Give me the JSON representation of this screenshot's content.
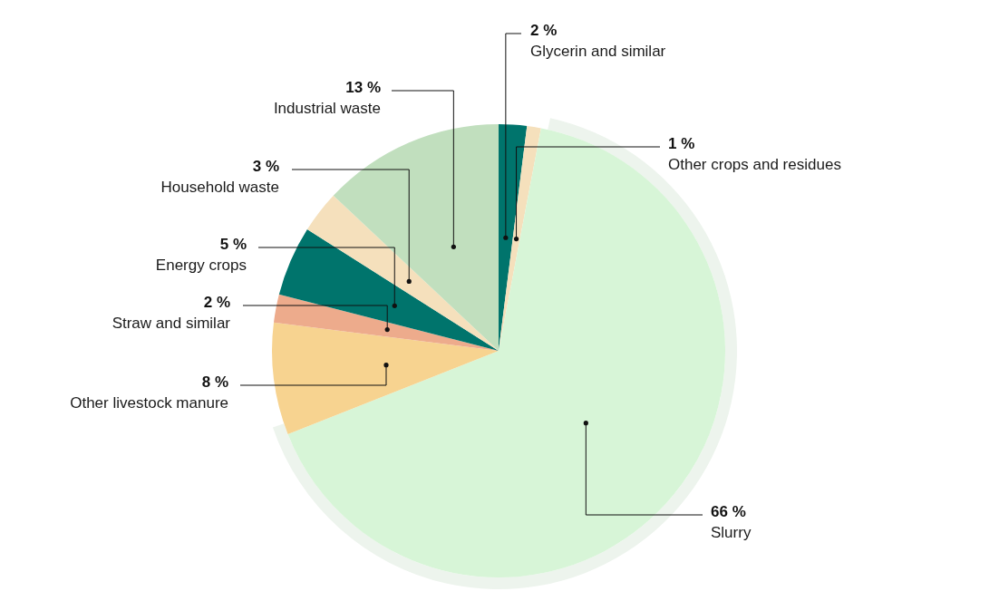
{
  "chart_data": {
    "type": "pie",
    "categories": [
      "Glycerin and similar",
      "Other crops and residues",
      "Slurry",
      "Other livestock manure",
      "Straw and similar",
      "Energy crops",
      "Household waste",
      "Industrial waste"
    ],
    "values": [
      2,
      1,
      66,
      8,
      2,
      5,
      3,
      13
    ],
    "value_labels": [
      "2 %",
      "1 %",
      "66 %",
      "8 %",
      "2 %",
      "5 %",
      "3 %",
      "13 %"
    ],
    "colors": [
      "#00746c",
      "#f5e0bc",
      "#d7f5d7",
      "#f7d390",
      "#edab8c",
      "#00746c",
      "#f5e0bc",
      "#c1dfbe"
    ],
    "data_labels": true
  }
}
